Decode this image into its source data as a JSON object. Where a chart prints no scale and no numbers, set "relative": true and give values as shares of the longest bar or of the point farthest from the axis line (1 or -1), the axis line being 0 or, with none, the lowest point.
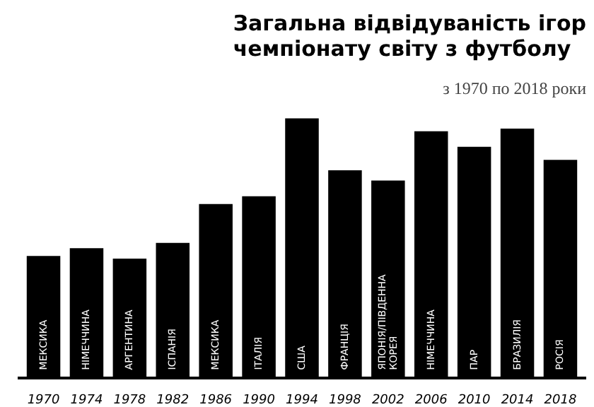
{
  "chart_data": {
    "type": "bar",
    "title": "Загальна відвідуваність ігор чемпіонату світу з футболу",
    "subtitle": "з 1970 по 2018 роки",
    "categories": [
      "1970",
      "1974",
      "1978",
      "1982",
      "1986",
      "1990",
      "1994",
      "1998",
      "2002",
      "2006",
      "2010",
      "2014",
      "2018"
    ],
    "values": [
      0.47,
      0.5,
      0.46,
      0.52,
      0.67,
      0.7,
      1,
      0.8,
      0.76,
      0.95,
      0.89,
      0.96,
      0.84
    ],
    "color": "#000000",
    "relative": true,
    "grid": false,
    "annotations": [
      "МЕКСИКА",
      "НІМЕЧЧИНА",
      "АРГЕНТИНА",
      "ІСПАНІЯ",
      "МЕКСИКА",
      "ІТАЛІЯ",
      "США",
      "ФРАНЦІЯ",
      "ЯПОНІЯ/ПІВДЕННА КОРЕЯ",
      "НІМЕЧЧИНА",
      "ПАР",
      "БРАЗИЛІЯ",
      "РОСІЯ"
    ]
  }
}
